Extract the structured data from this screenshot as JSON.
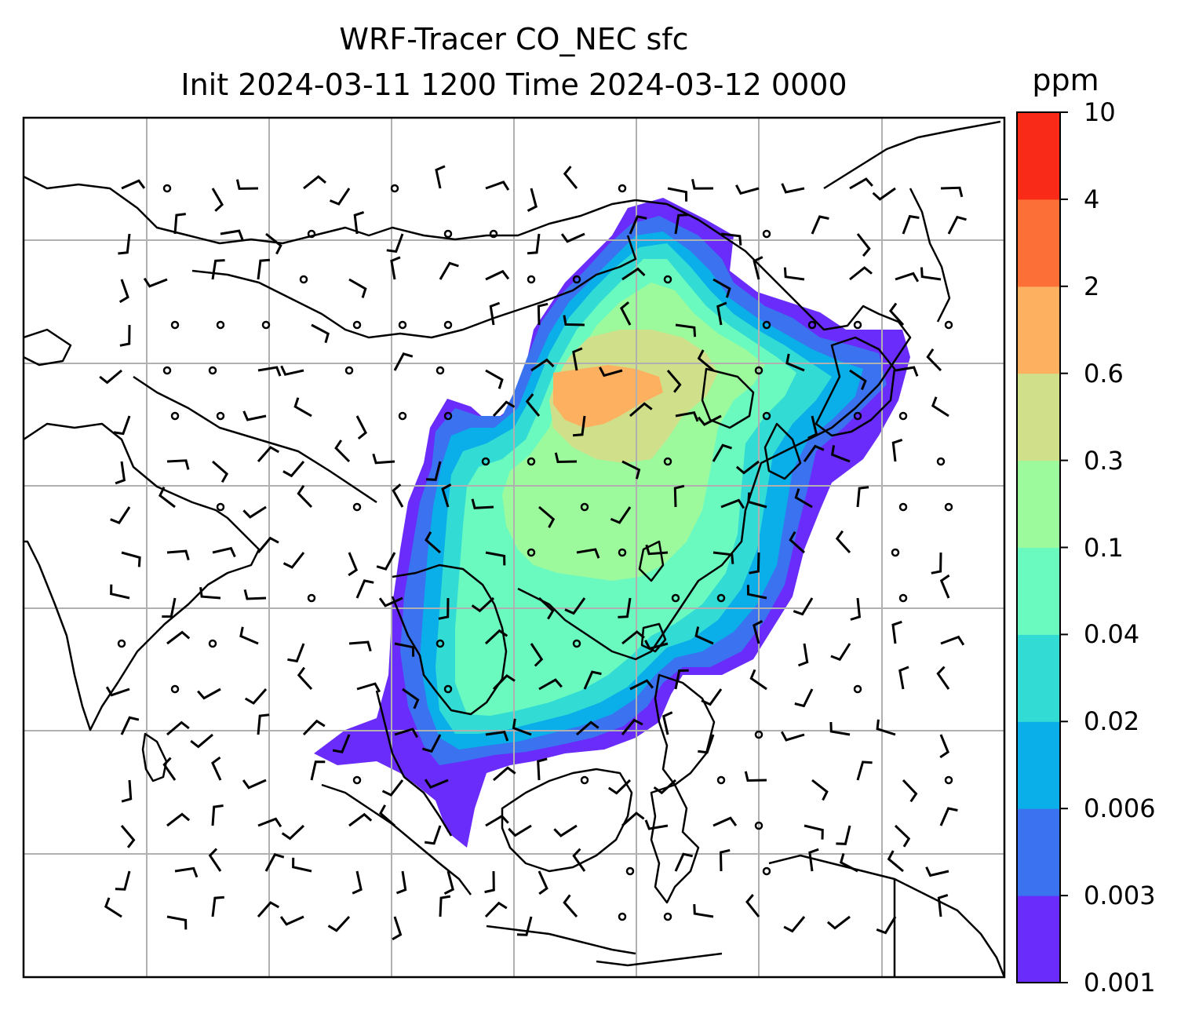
{
  "title": {
    "line1": "WRF-Tracer CO_NEC sfc",
    "line2": "Init 2024-03-11 1200 Time 2024-03-12 0000"
  },
  "colorbar": {
    "unit": "ppm",
    "ticks": [
      "0.001",
      "0.003",
      "0.006",
      "0.02",
      "0.04",
      "0.1",
      "0.3",
      "0.6",
      "2",
      "4",
      "10"
    ],
    "colors": [
      "#6a2cfa",
      "#3a72f0",
      "#0aaee8",
      "#32dcd4",
      "#6afac0",
      "#9cfa9c",
      "#d0e08a",
      "#fcb060",
      "#fc7038",
      "#fa2a18"
    ]
  },
  "map": {
    "gridlines": true,
    "barb_color": "#000000",
    "coastline_color": "#000000"
  }
}
